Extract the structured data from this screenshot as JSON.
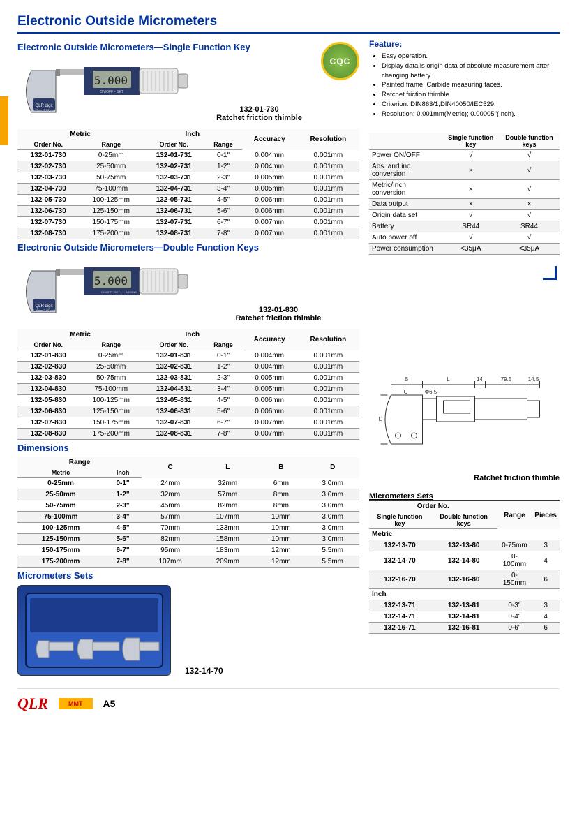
{
  "page": {
    "title": "Electronic Outside Micrometers",
    "sections": {
      "single": {
        "title": "Electronic Outside Micrometers—Single Function Key",
        "modelLabel": "132-01-730",
        "subLabel": "Ratchet friction thimble"
      },
      "double": {
        "title": "Electronic Outside Micrometers—Double Function Keys",
        "modelLabel": "132-01-830",
        "subLabel": "Ratchet friction thimble"
      },
      "dims": {
        "title": "Dimensions"
      },
      "sets": {
        "title": "Micrometers Sets",
        "setLabel": "132-14-70"
      }
    },
    "footer": {
      "logo1": "QLR",
      "logo2": "MMT",
      "pageNum": "A5"
    }
  },
  "specHeaders": {
    "group1": "Metric",
    "group2": "Inch",
    "h1": "Order No.",
    "h2": "Range",
    "h3": "Order No.",
    "h4": "Range",
    "h5": "Accuracy",
    "h6": "Resolution"
  },
  "singleRows": [
    [
      "132-01-730",
      "0-25mm",
      "132-01-731",
      "0-1\"",
      "0.004mm",
      "0.001mm"
    ],
    [
      "132-02-730",
      "25-50mm",
      "132-02-731",
      "1-2\"",
      "0.004mm",
      "0.001mm"
    ],
    [
      "132-03-730",
      "50-75mm",
      "132-03-731",
      "2-3\"",
      "0.005mm",
      "0.001mm"
    ],
    [
      "132-04-730",
      "75-100mm",
      "132-04-731",
      "3-4\"",
      "0.005mm",
      "0.001mm"
    ],
    [
      "132-05-730",
      "100-125mm",
      "132-05-731",
      "4-5\"",
      "0.006mm",
      "0.001mm"
    ],
    [
      "132-06-730",
      "125-150mm",
      "132-06-731",
      "5-6\"",
      "0.006mm",
      "0.001mm"
    ],
    [
      "132-07-730",
      "150-175mm",
      "132-07-731",
      "6-7\"",
      "0.007mm",
      "0.001mm"
    ],
    [
      "132-08-730",
      "175-200mm",
      "132-08-731",
      "7-8\"",
      "0.007mm",
      "0.001mm"
    ]
  ],
  "doubleRows": [
    [
      "132-01-830",
      "0-25mm",
      "132-01-831",
      "0-1\"",
      "0.004mm",
      "0.001mm"
    ],
    [
      "132-02-830",
      "25-50mm",
      "132-02-831",
      "1-2\"",
      "0.004mm",
      "0.001mm"
    ],
    [
      "132-03-830",
      "50-75mm",
      "132-03-831",
      "2-3\"",
      "0.005mm",
      "0.001mm"
    ],
    [
      "132-04-830",
      "75-100mm",
      "132-04-831",
      "3-4\"",
      "0.005mm",
      "0.001mm"
    ],
    [
      "132-05-830",
      "100-125mm",
      "132-05-831",
      "4-5\"",
      "0.006mm",
      "0.001mm"
    ],
    [
      "132-06-830",
      "125-150mm",
      "132-06-831",
      "5-6\"",
      "0.006mm",
      "0.001mm"
    ],
    [
      "132-07-830",
      "150-175mm",
      "132-07-831",
      "6-7\"",
      "0.007mm",
      "0.001mm"
    ],
    [
      "132-08-830",
      "175-200mm",
      "132-08-831",
      "7-8\"",
      "0.007mm",
      "0.001mm"
    ]
  ],
  "dimHeaders": {
    "group": "Range",
    "h1": "Metric",
    "h2": "Inch",
    "h3": "C",
    "h4": "L",
    "h5": "B",
    "h6": "D"
  },
  "dimRows": [
    [
      "0-25mm",
      "0-1\"",
      "24mm",
      "32mm",
      "6mm",
      "3.0mm"
    ],
    [
      "25-50mm",
      "1-2\"",
      "32mm",
      "57mm",
      "8mm",
      "3.0mm"
    ],
    [
      "50-75mm",
      "2-3\"",
      "45mm",
      "82mm",
      "8mm",
      "3.0mm"
    ],
    [
      "75-100mm",
      "3-4\"",
      "57mm",
      "107mm",
      "10mm",
      "3.0mm"
    ],
    [
      "100-125mm",
      "4-5\"",
      "70mm",
      "133mm",
      "10mm",
      "3.0mm"
    ],
    [
      "125-150mm",
      "5-6\"",
      "82mm",
      "158mm",
      "10mm",
      "3.0mm"
    ],
    [
      "150-175mm",
      "6-7\"",
      "95mm",
      "183mm",
      "12mm",
      "5.5mm"
    ],
    [
      "175-200mm",
      "7-8\"",
      "107mm",
      "209mm",
      "12mm",
      "5.5mm"
    ]
  ],
  "features": {
    "title": "Feature:",
    "items": [
      "Easy operation.",
      "Display data is origin data of absolute measurement after changing battery.",
      "Painted frame. Carbide measuring faces.",
      "Ratchet friction thimble.",
      "Criterion: DIN863/1,DIN40050/IEC529.",
      "Resolution: 0.001mm(Metric); 0.00005\"(Inch)."
    ]
  },
  "compare": {
    "h1": "Single function key",
    "h2": "Double function keys",
    "rows": [
      [
        "Power ON/OFF",
        "√",
        "√"
      ],
      [
        "Abs. and inc. conversion",
        "×",
        "√"
      ],
      [
        "Metric/Inch conversion",
        "×",
        "√"
      ],
      [
        "Data output",
        "×",
        "×"
      ],
      [
        "Origin data set",
        "√",
        "√"
      ],
      [
        "Battery",
        "SR44",
        "SR44"
      ],
      [
        "Auto power off",
        "√",
        "√"
      ],
      [
        "Power consumption",
        "<35μA",
        "<35μA"
      ]
    ]
  },
  "techDrawing": {
    "caption": "Ratchet friction thimble",
    "dims": {
      "B": "B",
      "L": "L",
      "d14": "14",
      "d795": "79.5",
      "d145": "14.5",
      "D": "D",
      "C": "C",
      "phi": "Φ6.5"
    }
  },
  "setsTable": {
    "title": "Micrometers Sets",
    "h1": "Order No.",
    "h2": "Range",
    "h3": "Pieces",
    "sub1": "Single function key",
    "sub2": "Double function keys",
    "g1": "Metric",
    "g2": "Inch",
    "metricRows": [
      [
        "132-13-70",
        "132-13-80",
        "0-75mm",
        "3"
      ],
      [
        "132-14-70",
        "132-14-80",
        "0-100mm",
        "4"
      ],
      [
        "132-16-70",
        "132-16-80",
        "0-150mm",
        "6"
      ]
    ],
    "inchRows": [
      [
        "132-13-71",
        "132-13-81",
        "0-3\"",
        "3"
      ],
      [
        "132-14-71",
        "132-14-81",
        "0-4\"",
        "4"
      ],
      [
        "132-16-71",
        "132-16-81",
        "0-6\"",
        "6"
      ]
    ]
  },
  "colors": {
    "brand": "#0033a0",
    "accent": "#f5a400",
    "frameDark": "#2b3a67",
    "frameLight": "#c8ccd4",
    "lcdBg": "#9ea899",
    "lcdText": "#222"
  }
}
